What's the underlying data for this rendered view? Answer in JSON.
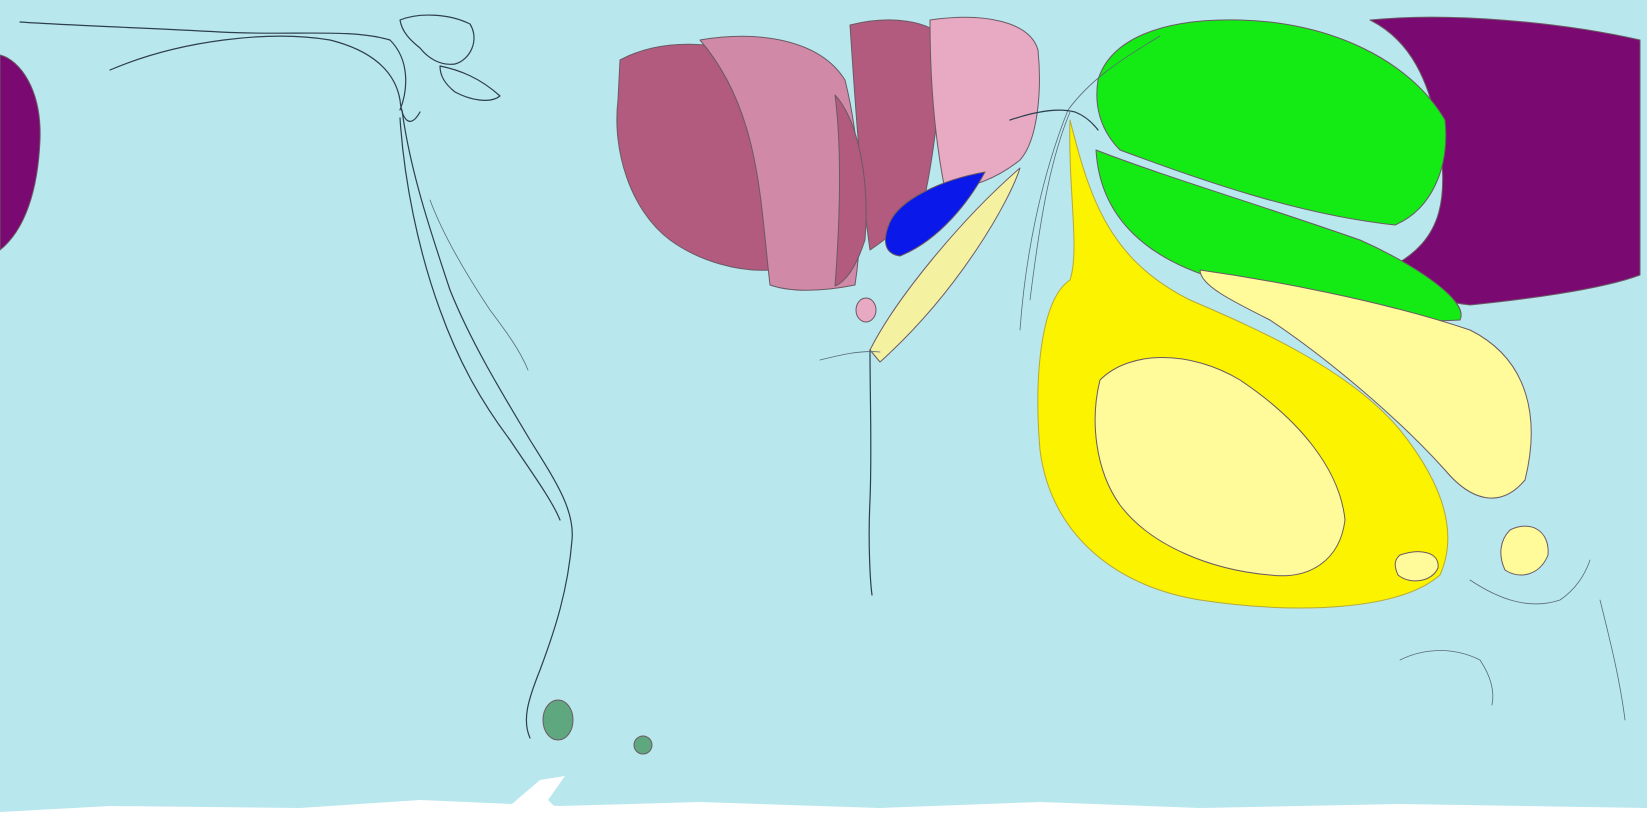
{
  "map": {
    "projection": "equirectangular-cartogram",
    "labels": [],
    "colors": {
      "ocean": "#b9e7ee",
      "antarctica": "#ffffff",
      "purple": "#7a0a72",
      "mauve_dark": "#b35a7f",
      "mauve_mid": "#d08aa8",
      "mauve_light": "#e8a9c2",
      "blue": "#0a18ea",
      "green": "#14ea14",
      "yellow": "#fbf300",
      "yellow_light": "#fffb9a",
      "pale_yellow": "#f4f2a0",
      "teal_green": "#5fa87f"
    },
    "regions": [
      {
        "id": "purple-west-edge",
        "color_key": "purple"
      },
      {
        "id": "purple-east",
        "color_key": "purple"
      },
      {
        "id": "mauve-dark-west",
        "color_key": "mauve_dark"
      },
      {
        "id": "mauve-mid",
        "color_key": "mauve_mid"
      },
      {
        "id": "mauve-dark-center",
        "color_key": "mauve_dark"
      },
      {
        "id": "mauve-light-east",
        "color_key": "mauve_light"
      },
      {
        "id": "blue-lens",
        "color_key": "blue"
      },
      {
        "id": "pale-yellow-sliver",
        "color_key": "pale_yellow"
      },
      {
        "id": "green-upper",
        "color_key": "green"
      },
      {
        "id": "green-lower",
        "color_key": "green"
      },
      {
        "id": "yellow-outer",
        "color_key": "yellow"
      },
      {
        "id": "yellow-light-blob",
        "color_key": "yellow_light"
      },
      {
        "id": "yellow-southeast",
        "color_key": "yellow_light"
      },
      {
        "id": "teal-island-large",
        "color_key": "teal_green"
      },
      {
        "id": "teal-island-small",
        "color_key": "teal_green"
      },
      {
        "id": "antarctica-strip",
        "color_key": "antarctica"
      }
    ]
  }
}
